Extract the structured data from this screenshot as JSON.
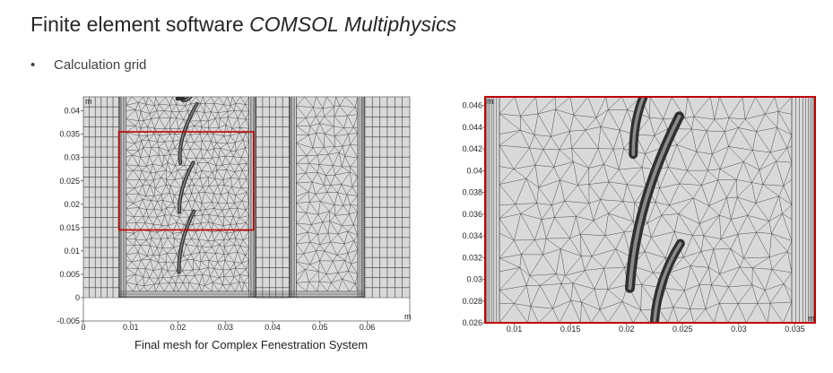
{
  "slide": {
    "title_plain": "Finite element software ",
    "title_italic": "COMSOL Multiphysics",
    "bullet_symbol": "•",
    "bullet_text": "Calculation grid",
    "caption": "Final mesh for Complex Fenestration System"
  },
  "colors": {
    "mesh_fill": "#d9d9d9",
    "mesh_line": "#3a3a3a",
    "highlight": "#c00000",
    "blade": "#303030"
  },
  "left_plot": {
    "unit_x": "m",
    "unit_y": "m",
    "xlim": [
      0,
      0.069
    ],
    "ylim": [
      -0.005,
      0.043
    ],
    "x_ticks": [
      "0",
      "0.01",
      "0.02",
      "0.03",
      "0.04",
      "0.05",
      "0.06"
    ],
    "y_ticks": [
      "-0.005",
      "0",
      "0.005",
      "0.01",
      "0.015",
      "0.02",
      "0.025",
      "0.03",
      "0.035",
      "0.04"
    ],
    "highlight_box": {
      "x0": 0.0075,
      "x1": 0.036,
      "y0": 0.0145,
      "y1": 0.0355
    }
  },
  "right_plot": {
    "unit_x": "m",
    "unit_y": "m",
    "xlim": [
      0.0074,
      0.0368
    ],
    "ylim": [
      0.026,
      0.0468
    ],
    "x_ticks": [
      "0.01",
      "0.015",
      "0.02",
      "0.025",
      "0.03",
      "0.035"
    ],
    "y_ticks": [
      "0.026",
      "0.028",
      "0.03",
      "0.032",
      "0.034",
      "0.036",
      "0.038",
      "0.04",
      "0.042",
      "0.044",
      "0.046"
    ]
  }
}
